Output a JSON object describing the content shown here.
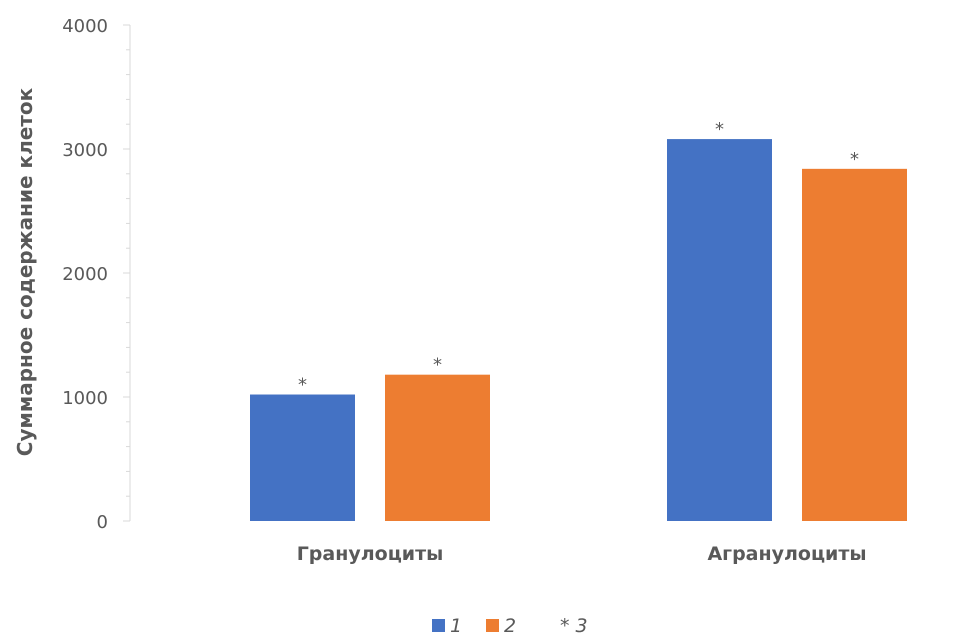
{
  "chart_data": {
    "type": "bar",
    "title": "",
    "xlabel": "",
    "ylabel": "Суммарное содержание клеток",
    "categories": [
      "Гранулоциты",
      "Агранулоциты"
    ],
    "series": [
      {
        "name": "1",
        "values": [
          1020,
          3080
        ],
        "color": "#4472c4"
      },
      {
        "name": "2",
        "values": [
          1180,
          2840
        ],
        "color": "#ed7d31"
      }
    ],
    "marks": [
      [
        "*",
        "*"
      ],
      [
        "*",
        "*"
      ]
    ],
    "mark_legend": {
      "symbol": "*",
      "name": "3"
    },
    "ylim": [
      0,
      4000
    ],
    "yticks": [
      0,
      1000,
      2000,
      3000,
      4000
    ],
    "grid": false,
    "legend_position": "bottom"
  }
}
